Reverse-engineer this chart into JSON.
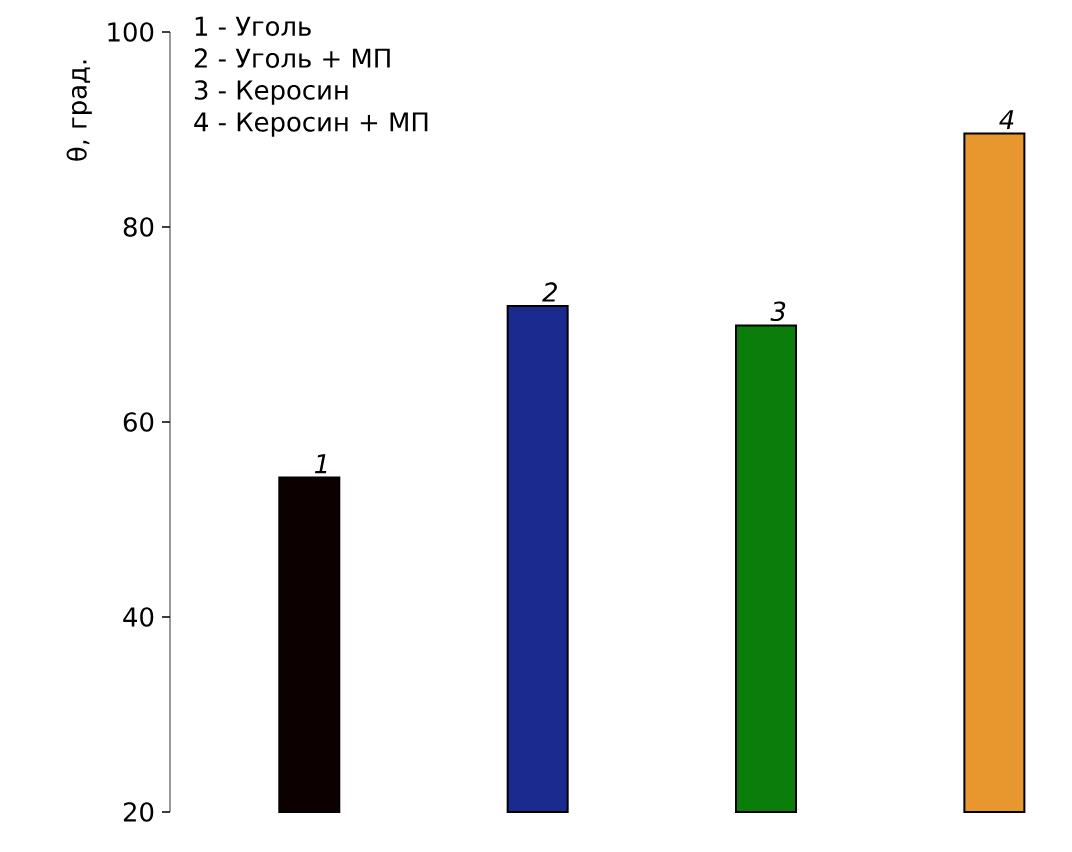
{
  "chart_data": {
    "type": "bar",
    "ylabel": "θ, град.",
    "categories": [
      "1",
      "2",
      "3",
      "4"
    ],
    "values": [
      54.3,
      71.9,
      69.9,
      89.6
    ],
    "colors": [
      "#0d0000",
      "#1b2a8f",
      "#0a7d0a",
      "#e8962e"
    ],
    "ylim": [
      20,
      100
    ],
    "yticks": [
      20,
      40,
      60,
      80,
      100
    ],
    "tick_labels": "y",
    "grid": false,
    "annotations": [
      "1 - Уголь",
      "2 - Уголь + МП",
      "3 - Керосин",
      "4 - Керосин + МП"
    ]
  }
}
